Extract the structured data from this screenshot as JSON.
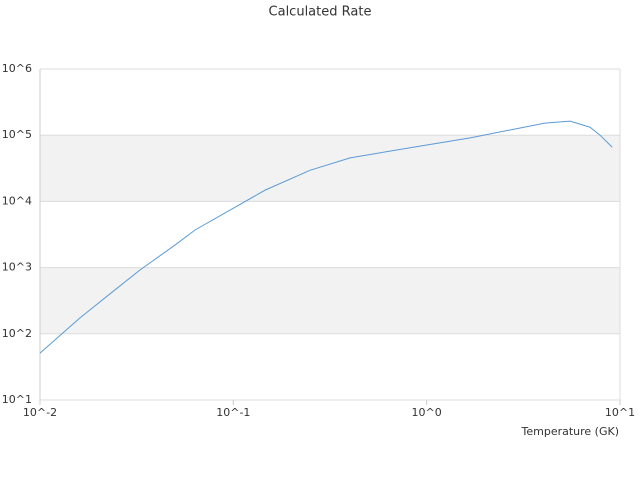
{
  "chart_data": {
    "type": "line",
    "title": "Calculated Rate",
    "x_label": "Temperature (GK)",
    "xscale": "log",
    "yscale": "log",
    "x": [
      0.01,
      0.0161,
      0.0244,
      0.0329,
      0.0499,
      0.0634,
      0.0962,
      0.146,
      0.249,
      0.402,
      0.821,
      1.68,
      2.7,
      4.09,
      5.52,
      7.0,
      7.89,
      9.1
    ],
    "series": [
      {
        "color": "#5b9bd5",
        "values": [
          51,
          174,
          460,
          920,
          2190,
          3700,
          7400,
          14800,
          29500,
          45500,
          64600,
          91000,
          120000,
          152000,
          163000,
          132000,
          100000,
          66000
        ]
      }
    ],
    "xlim": [
      0.01,
      10
    ],
    "xticks": [
      {
        "value": 0.01,
        "label": "10^-2"
      },
      {
        "value": 0.1,
        "label": "10^-1"
      },
      {
        "value": 1,
        "label": "10^0"
      },
      {
        "value": 10,
        "label": "10^1"
      }
    ],
    "ylim": [
      10,
      1000000
    ],
    "yticks": [
      {
        "value": 10,
        "label": "10^1"
      },
      {
        "value": 100,
        "label": "10^2"
      },
      {
        "value": 1000,
        "label": "10^3"
      },
      {
        "value": 10000,
        "label": "10^4"
      },
      {
        "value": 100000,
        "label": "10^5"
      },
      {
        "value": 1000000,
        "label": "10^6"
      }
    ],
    "grid": true,
    "alternating_bands": true
  }
}
